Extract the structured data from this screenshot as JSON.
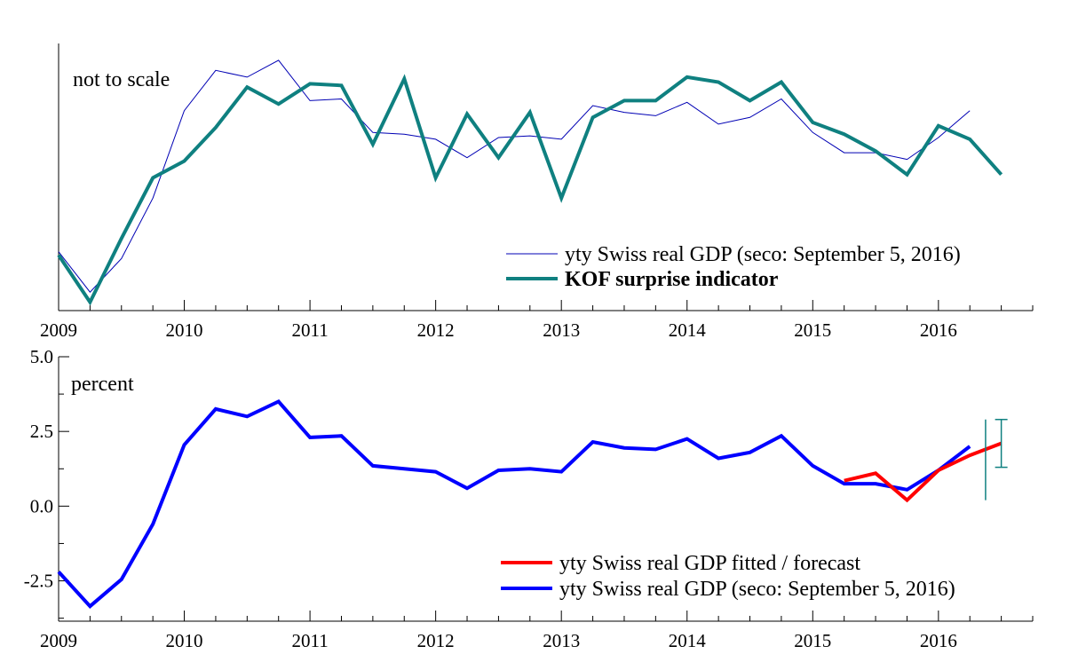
{
  "chart_data": [
    {
      "type": "line",
      "annotation": "not to scale",
      "xlim": [
        2009,
        2016.75
      ],
      "x_ticks": [
        "2009",
        "2010",
        "2011",
        "2012",
        "2013",
        "2014",
        "2015",
        "2016"
      ],
      "y_tick_labels": [],
      "legend_position": "bottom-right",
      "series": [
        {
          "name": "yty Swiss real GDP (seco: September 5, 2016)",
          "color": "#0000b4",
          "style": "thin",
          "x": [
            2009.0,
            2009.25,
            2009.5,
            2009.75,
            2010.0,
            2010.25,
            2010.5,
            2010.75,
            2011.0,
            2011.25,
            2011.5,
            2011.75,
            2012.0,
            2012.25,
            2012.5,
            2012.75,
            2013.0,
            2013.25,
            2013.5,
            2013.75,
            2014.0,
            2014.25,
            2014.5,
            2014.75,
            2015.0,
            2015.25,
            2015.5,
            2015.75,
            2016.0,
            2016.25
          ],
          "values": [
            -2.2,
            -3.4,
            -2.4,
            -0.6,
            2.0,
            3.2,
            3.0,
            3.5,
            2.3,
            2.35,
            1.35,
            1.3,
            1.15,
            0.6,
            1.2,
            1.25,
            1.15,
            2.15,
            1.95,
            1.85,
            2.25,
            1.6,
            1.8,
            2.35,
            1.35,
            0.75,
            0.75,
            0.55,
            1.2,
            2.0
          ]
        },
        {
          "name": "KOF surprise indicator",
          "color": "#0f8080",
          "style": "thick",
          "x": [
            2009.0,
            2009.25,
            2009.5,
            2009.75,
            2010.0,
            2010.25,
            2010.5,
            2010.75,
            2011.0,
            2011.25,
            2011.5,
            2011.75,
            2012.0,
            2012.25,
            2012.5,
            2012.75,
            2013.0,
            2013.25,
            2013.5,
            2013.75,
            2014.0,
            2014.25,
            2014.5,
            2014.75,
            2015.0,
            2015.25,
            2015.5,
            2015.75,
            2016.0,
            2016.25,
            2016.5
          ],
          "values": [
            -2.3,
            -3.7,
            -1.8,
            0.0,
            0.5,
            1.5,
            2.7,
            2.2,
            2.8,
            2.75,
            1.0,
            2.95,
            0.0,
            1.9,
            0.6,
            1.95,
            -0.6,
            1.8,
            2.3,
            2.3,
            3.0,
            2.85,
            2.3,
            2.85,
            1.65,
            1.3,
            0.8,
            0.1,
            1.55,
            1.15,
            0.1
          ]
        }
      ]
    },
    {
      "type": "line",
      "annotation": "percent",
      "xlim": [
        2009,
        2016.75
      ],
      "ylim": [
        -3.85,
        5.0
      ],
      "x_ticks": [
        "2009",
        "2010",
        "2011",
        "2012",
        "2013",
        "2014",
        "2015",
        "2016"
      ],
      "y_ticks": [
        5.0,
        2.5,
        0.0,
        -2.5
      ],
      "y_tick_labels": [
        "5.0",
        "2.5",
        "0.0",
        "-2.5"
      ],
      "legend_position": "bottom-right",
      "series": [
        {
          "name": "yty Swiss real GDP fitted / forecast",
          "color": "#ff0000",
          "x": [
            2015.25,
            2015.5,
            2015.75,
            2016.0,
            2016.25,
            2016.5
          ],
          "values": [
            0.85,
            1.1,
            0.2,
            1.2,
            1.7,
            2.1
          ]
        },
        {
          "name": "yty Swiss real GDP (seco: September 5, 2016)",
          "color": "#0000ff",
          "x": [
            2009.0,
            2009.25,
            2009.5,
            2009.75,
            2010.0,
            2010.25,
            2010.5,
            2010.75,
            2011.0,
            2011.25,
            2011.5,
            2011.75,
            2012.0,
            2012.25,
            2012.5,
            2012.75,
            2013.0,
            2013.25,
            2013.5,
            2013.75,
            2014.0,
            2014.25,
            2014.5,
            2014.75,
            2015.0,
            2015.25,
            2015.5,
            2015.75,
            2016.0,
            2016.25
          ],
          "values": [
            -2.2,
            -3.35,
            -2.45,
            -0.6,
            2.05,
            3.25,
            3.0,
            3.5,
            2.3,
            2.35,
            1.35,
            1.25,
            1.15,
            0.6,
            1.2,
            1.25,
            1.15,
            2.15,
            1.95,
            1.9,
            2.25,
            1.6,
            1.8,
            2.35,
            1.35,
            0.75,
            0.75,
            0.55,
            1.2,
            2.0
          ]
        }
      ],
      "error_bars": [
        {
          "x": 2016.375,
          "low": 0.2,
          "high": 2.9,
          "color": "#0f8080",
          "caps": false
        },
        {
          "x": 2016.5,
          "low": 1.3,
          "high": 2.9,
          "color": "#0f8080",
          "caps": true
        }
      ]
    }
  ]
}
